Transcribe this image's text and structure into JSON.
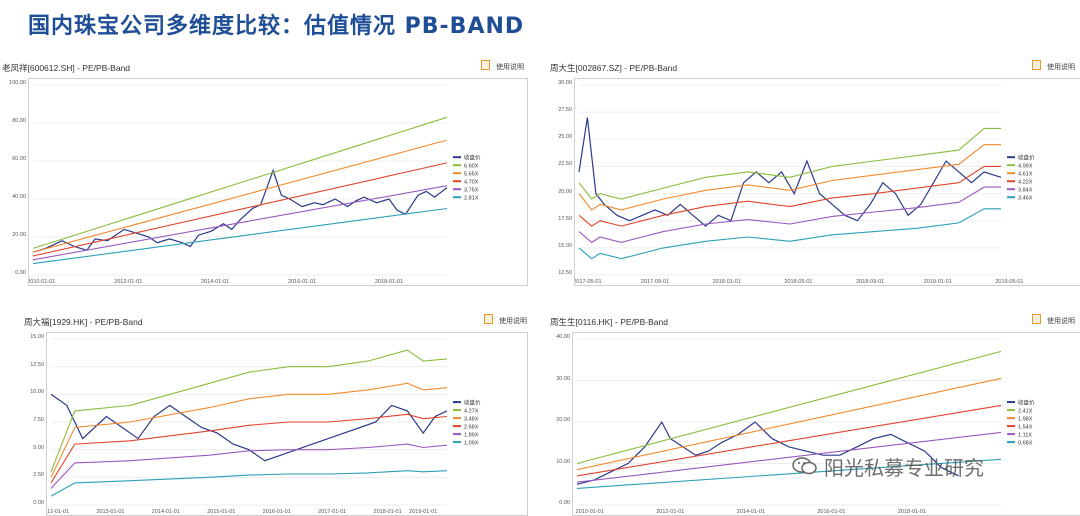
{
  "slide": {
    "title": "国内珠宝公司多维度比较：估值情况 PB-BAND"
  },
  "watermark": {
    "text": "阳光私募专业研究"
  },
  "help_label": "使用说明",
  "chart_data": [
    {
      "type": "line",
      "title": "老凤祥[600612.SH] - PE/PB-Band",
      "ylim": [
        0,
        100
      ],
      "yticks": [
        0,
        20,
        40,
        60,
        80,
        100
      ],
      "ytick_labels": [
        "0.00",
        "20.00",
        "40.00",
        "60.00",
        "80.00",
        "100.00"
      ],
      "xlim": [
        0,
        10
      ],
      "xtick_pos": [
        0.2,
        2.3,
        4.4,
        6.5,
        8.6
      ],
      "xtick_labels": [
        "2010-01-01",
        "2012-01-01",
        "2014-01-01",
        "2016-01-01",
        "2018-01-01"
      ],
      "legend_position": "right",
      "series": [
        {
          "name": "收盘价",
          "color": "#2b3a8c",
          "x": [
            0,
            0.3,
            0.7,
            1.0,
            1.3,
            1.5,
            1.8,
            2.0,
            2.2,
            2.5,
            2.8,
            3.0,
            3.3,
            3.6,
            3.8,
            4.0,
            4.3,
            4.6,
            4.8,
            5.0,
            5.3,
            5.5,
            5.8,
            6.0,
            6.2,
            6.5,
            6.8,
            7.0,
            7.3,
            7.6,
            7.8,
            8.0,
            8.3,
            8.6,
            8.8,
            9.0,
            9.3,
            9.5,
            9.7,
            10.0
          ],
          "values": [
            12,
            14,
            18,
            15,
            13,
            19,
            18,
            21,
            24,
            22,
            20,
            17,
            19,
            17,
            15,
            21,
            23,
            27,
            24,
            29,
            35,
            37,
            55,
            42,
            40,
            36,
            38,
            37,
            40,
            36,
            39,
            41,
            38,
            40,
            34,
            32,
            42,
            44,
            41,
            46
          ]
        },
        {
          "name": "6.60X",
          "color": "#8dbb3d",
          "x": [
            0,
            10
          ],
          "values": [
            14,
            83
          ]
        },
        {
          "name": "5.65X",
          "color": "#f28a2e",
          "x": [
            0,
            10
          ],
          "values": [
            12,
            71
          ]
        },
        {
          "name": "4.70X",
          "color": "#e0432b",
          "x": [
            0,
            10
          ],
          "values": [
            10,
            59
          ]
        },
        {
          "name": "3.75X",
          "color": "#9b59c0",
          "x": [
            0,
            10
          ],
          "values": [
            8,
            47
          ]
        },
        {
          "name": "2.81X",
          "color": "#2aa0b8",
          "x": [
            0,
            10
          ],
          "values": [
            6,
            35
          ]
        }
      ]
    },
    {
      "type": "line",
      "title": "周大生[002867.SZ] - PE/PB-Band",
      "ylim": [
        12.5,
        30
      ],
      "yticks": [
        12.5,
        15,
        17.5,
        20,
        22.5,
        25,
        27.5,
        30
      ],
      "ytick_labels": [
        "12.50",
        "15.00",
        "17.50",
        "20.00",
        "22.50",
        "25.00",
        "27.50",
        "30.00"
      ],
      "xlim": [
        0,
        10
      ],
      "xtick_pos": [
        0.2,
        2.6,
        5.0,
        7.4,
        9.8
      ],
      "xtick_labels": [
        "2017-05-01",
        "2017-09-01",
        "2018-01-01",
        "2018-05-01",
        "2018-09-01",
        "2019-01-01",
        "2019-05-01"
      ],
      "xtick_pos_full": [
        0.2,
        1.8,
        3.5,
        5.2,
        6.9,
        8.5,
        10.2
      ],
      "legend_position": "right",
      "series": [
        {
          "name": "收盘价",
          "color": "#2b3a8c",
          "x": [
            0,
            0.2,
            0.4,
            0.6,
            0.9,
            1.2,
            1.5,
            1.8,
            2.1,
            2.4,
            2.7,
            3.0,
            3.3,
            3.6,
            3.9,
            4.2,
            4.5,
            4.8,
            5.1,
            5.4,
            5.7,
            6.0,
            6.3,
            6.6,
            6.9,
            7.2,
            7.5,
            7.8,
            8.1,
            8.4,
            8.7,
            9.0,
            9.3,
            9.6,
            10.0
          ],
          "values": [
            22,
            27,
            20,
            19,
            18,
            17.5,
            18,
            18.5,
            18,
            19,
            18,
            17,
            18,
            17.5,
            21,
            22,
            21,
            22,
            20,
            23,
            20,
            19,
            18,
            17.5,
            19,
            21,
            20,
            18,
            19,
            21,
            23,
            22,
            21,
            22,
            21.5
          ]
        },
        {
          "name": "4.99X",
          "color": "#8dbb3d",
          "x": [
            0,
            0.3,
            0.5,
            1.0,
            2.0,
            3.0,
            4.0,
            5.0,
            6.0,
            7.0,
            8.0,
            9.0,
            9.6,
            10.0
          ],
          "values": [
            21,
            19.5,
            20,
            19.5,
            20.5,
            21.5,
            22,
            21.5,
            22.5,
            23,
            23.5,
            24,
            26,
            26
          ]
        },
        {
          "name": "4.61X",
          "color": "#f28a2e",
          "x": [
            0,
            0.3,
            0.5,
            1.0,
            2.0,
            3.0,
            4.0,
            5.0,
            6.0,
            7.0,
            8.0,
            9.0,
            9.6,
            10.0
          ],
          "values": [
            20,
            18.5,
            19,
            18.5,
            19.5,
            20.3,
            20.8,
            20.3,
            21.2,
            21.7,
            22.2,
            22.7,
            24.5,
            24.5
          ]
        },
        {
          "name": "4.22X",
          "color": "#e0432b",
          "x": [
            0,
            0.3,
            0.5,
            1.0,
            2.0,
            3.0,
            4.0,
            5.0,
            6.0,
            7.0,
            8.0,
            9.0,
            9.6,
            10.0
          ],
          "values": [
            18,
            17,
            17.5,
            17,
            18,
            18.8,
            19.3,
            18.8,
            19.6,
            20,
            20.5,
            21,
            22.5,
            22.5
          ]
        },
        {
          "name": "3.84X",
          "color": "#9b59c0",
          "x": [
            0,
            0.3,
            0.5,
            1.0,
            2.0,
            3.0,
            4.0,
            5.0,
            6.0,
            7.0,
            8.0,
            9.0,
            9.6,
            10.0
          ],
          "values": [
            16.5,
            15.5,
            16,
            15.5,
            16.5,
            17.2,
            17.6,
            17.2,
            17.9,
            18.3,
            18.7,
            19.2,
            20.6,
            20.6
          ]
        },
        {
          "name": "3.46X",
          "color": "#2aa0b8",
          "x": [
            0,
            0.3,
            0.5,
            1.0,
            2.0,
            3.0,
            4.0,
            5.0,
            6.0,
            7.0,
            8.0,
            9.0,
            9.6,
            10.0
          ],
          "values": [
            15,
            14,
            14.5,
            14,
            15,
            15.6,
            16,
            15.6,
            16.2,
            16.5,
            16.8,
            17.3,
            18.6,
            18.6
          ]
        }
      ]
    },
    {
      "type": "line",
      "title": "周大福[1929.HK] - PE/PB-Band",
      "ylim": [
        0,
        15
      ],
      "yticks": [
        0,
        2.5,
        5,
        7.5,
        10,
        12.5,
        15
      ],
      "ytick_labels": [
        "0.00",
        "2.50",
        "5.00",
        "7.50",
        "10.00",
        "12.50",
        "15.00"
      ],
      "xlim": [
        0,
        10
      ],
      "xtick_pos": [
        0.1,
        1.6,
        3.1,
        4.6,
        6.1,
        7.6,
        9.1
      ],
      "xtick_labels": [
        "2012-01-01",
        "2013-01-01",
        "2014-01-01",
        "2015-01-01",
        "2016-01-01",
        "2017-01-01",
        "2018-01-01",
        "2019-01-01"
      ],
      "xtick_pos_full": [
        0.1,
        1.5,
        2.9,
        4.3,
        5.7,
        7.1,
        8.5,
        9.4
      ],
      "legend_position": "right",
      "series": [
        {
          "name": "收盘价",
          "color": "#2b3a8c",
          "x": [
            0,
            0.4,
            0.8,
            1.1,
            1.4,
            1.8,
            2.2,
            2.6,
            3.0,
            3.4,
            3.8,
            4.2,
            4.6,
            5.0,
            5.4,
            5.8,
            6.2,
            6.6,
            7.0,
            7.4,
            7.8,
            8.2,
            8.6,
            9.0,
            9.4,
            9.7,
            10.0
          ],
          "values": [
            10,
            9,
            6,
            7,
            8,
            7,
            6,
            8,
            9,
            8,
            7,
            6.5,
            5.5,
            5,
            4,
            4.5,
            5,
            5.5,
            6,
            6.5,
            7,
            7.5,
            9,
            8.5,
            6.5,
            8,
            8.5
          ]
        },
        {
          "name": "4.27X",
          "color": "#8dbb3d",
          "x": [
            0,
            0.6,
            2,
            4,
            5,
            6,
            7,
            8,
            9,
            9.4,
            10
          ],
          "values": [
            3,
            8.5,
            9,
            11,
            12,
            12.5,
            12.5,
            13,
            14,
            13,
            13.2
          ]
        },
        {
          "name": "3.48X",
          "color": "#f28a2e",
          "x": [
            0,
            0.6,
            2,
            4,
            5,
            6,
            7,
            8,
            9,
            9.4,
            10
          ],
          "values": [
            2.5,
            7,
            7.5,
            8.8,
            9.6,
            10,
            10,
            10.4,
            11,
            10.4,
            10.6
          ]
        },
        {
          "name": "2.68X",
          "color": "#e0432b",
          "x": [
            0,
            0.6,
            2,
            4,
            5,
            6,
            7,
            8,
            9,
            9.4,
            10
          ],
          "values": [
            2,
            5.5,
            5.8,
            6.7,
            7.2,
            7.5,
            7.5,
            7.8,
            8.2,
            7.8,
            8
          ]
        },
        {
          "name": "1.89X",
          "color": "#9b59c0",
          "x": [
            0,
            0.6,
            2,
            4,
            5,
            6,
            7,
            8,
            9,
            9.4,
            10
          ],
          "values": [
            1.5,
            3.8,
            4,
            4.5,
            4.9,
            5,
            5,
            5.2,
            5.5,
            5.2,
            5.4
          ]
        },
        {
          "name": "1.09X",
          "color": "#2aa0b8",
          "x": [
            0,
            0.6,
            2,
            4,
            5,
            6,
            7,
            8,
            9,
            9.4,
            10
          ],
          "values": [
            0.8,
            2,
            2.2,
            2.5,
            2.7,
            2.8,
            2.8,
            2.9,
            3.1,
            3,
            3.1
          ]
        }
      ]
    },
    {
      "type": "line",
      "title": "周生生[0116.HK] - PE/PB-Band",
      "ylim": [
        0,
        40
      ],
      "yticks": [
        0,
        10,
        20,
        30,
        40
      ],
      "ytick_labels": [
        "0.00",
        "10.00",
        "20.00",
        "30.00",
        "40.00"
      ],
      "xlim": [
        0,
        10
      ],
      "xtick_pos": [
        0.3,
        2.2,
        4.1,
        6.0,
        7.9
      ],
      "xtick_labels": [
        "2010-01-01",
        "2012-01-01",
        "2014-01-01",
        "2016-01-01",
        "2018-01-01"
      ],
      "legend_position": "right",
      "series": [
        {
          "name": "收盘价",
          "color": "#2b3a8c",
          "x": [
            0,
            0.4,
            0.8,
            1.2,
            1.6,
            2.0,
            2.2,
            2.5,
            2.8,
            3.1,
            3.4,
            3.8,
            4.2,
            4.6,
            5.0,
            5.4,
            5.8,
            6.2,
            6.6,
            7.0,
            7.4,
            7.8,
            8.2,
            8.6,
            9.0
          ],
          "values": [
            5,
            6,
            8,
            10,
            14,
            20,
            16,
            14,
            12,
            13,
            15,
            17,
            20,
            16,
            14,
            13,
            12,
            12,
            14,
            16,
            17,
            15,
            13,
            9,
            7
          ]
        },
        {
          "name": "2.41X",
          "color": "#8dbb3d",
          "x": [
            0,
            10
          ],
          "values": [
            10,
            37
          ]
        },
        {
          "name": "1.98X",
          "color": "#f28a2e",
          "x": [
            0,
            10
          ],
          "values": [
            8.5,
            30.5
          ]
        },
        {
          "name": "1.54X",
          "color": "#e0432b",
          "x": [
            0,
            10
          ],
          "values": [
            7,
            24
          ]
        },
        {
          "name": "1.11X",
          "color": "#9b59c0",
          "x": [
            0,
            10
          ],
          "values": [
            5.5,
            17.5
          ]
        },
        {
          "name": "0.68X",
          "color": "#2aa0b8",
          "x": [
            0,
            10
          ],
          "values": [
            4,
            11
          ]
        }
      ]
    }
  ]
}
